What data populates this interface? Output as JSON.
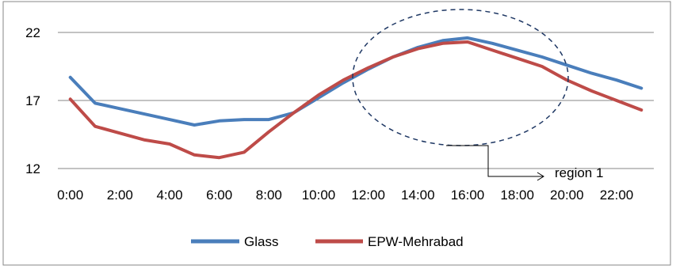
{
  "chart_data": {
    "type": "line",
    "title": "",
    "xlabel": "",
    "ylabel": "",
    "categories": [
      "0:00",
      "1:00",
      "2:00",
      "3:00",
      "4:00",
      "5:00",
      "6:00",
      "7:00",
      "8:00",
      "9:00",
      "10:00",
      "11:00",
      "12:00",
      "13:00",
      "14:00",
      "15:00",
      "16:00",
      "17:00",
      "18:00",
      "19:00",
      "20:00",
      "21:00",
      "22:00",
      "23:00"
    ],
    "x_tick_labels": [
      "0:00",
      "2:00",
      "4:00",
      "6:00",
      "8:00",
      "10:00",
      "12:00",
      "14:00",
      "16:00",
      "18:00",
      "20:00",
      "22:00"
    ],
    "ylim": [
      12,
      22
    ],
    "y_ticks": [
      12,
      17,
      22
    ],
    "grid": "horizontal",
    "legend_position": "bottom",
    "series": [
      {
        "name": "Glass",
        "color": "#4a7ebb",
        "values": [
          18.7,
          16.8,
          16.4,
          16.0,
          15.6,
          15.2,
          15.5,
          15.6,
          15.6,
          16.1,
          17.2,
          18.3,
          19.3,
          20.2,
          20.9,
          21.4,
          21.6,
          21.2,
          20.7,
          20.2,
          19.6,
          19.0,
          18.5,
          17.9
        ]
      },
      {
        "name": "EPW-Mehrabad",
        "color": "#be4b48",
        "values": [
          17.1,
          15.1,
          14.6,
          14.1,
          13.8,
          13.0,
          12.8,
          13.2,
          14.7,
          16.1,
          17.4,
          18.5,
          19.4,
          20.2,
          20.8,
          21.2,
          21.3,
          20.7,
          20.1,
          19.5,
          18.5,
          17.7,
          17.0,
          16.3
        ]
      }
    ],
    "annotations": [
      {
        "type": "dashed-ellipse",
        "label": "",
        "color": "#1f3864"
      },
      {
        "type": "arrow-label",
        "label": "region 1"
      }
    ]
  }
}
